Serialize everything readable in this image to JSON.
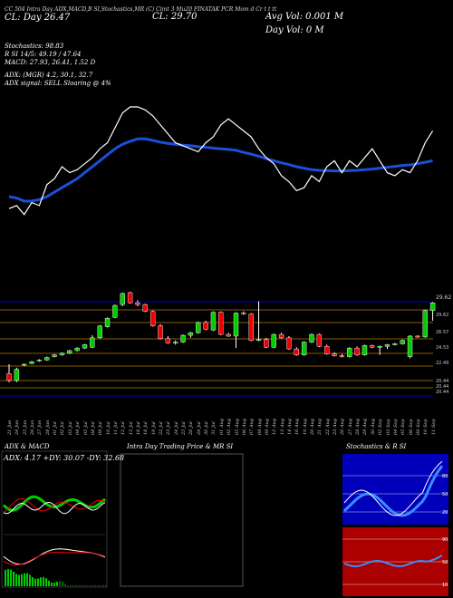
{
  "header": {
    "top_line": "CC 504 Intra Day ADX,MACD,B     SI,Stochastics,MR     (C) Cimt 3 Mu20     FINATAK PCR Mom d Cr t t tt",
    "lbl_left": "CL: Day",
    "val_left": "26.47",
    "lbl_cl": "CL: 29.70",
    "avg_vol": "Avg Vol: 0.001 M",
    "day_vol": "Day Vol: 0   M",
    "stoch": "Stochastics: 98.83",
    "rsi": "R                SI 14/5: 49.19 / 47.64",
    "macd": "MACD: 27.93, 26.41, 1.52  D",
    "adx": "ADX:                   (MGR) 4.2, 30.1, 32.7",
    "adx_signal": "ADX  signal: SELL  Sloaring @ 4%"
  },
  "panels": {
    "adx_title": "ADX  & MACD",
    "intraday_title": "Intra  Day Trading Price  & MR                         SI",
    "stoch_title": "Stochastics & R                    SI",
    "adx_values": "ADX: 4.17  +DY: 30.07  -DY: 32.68"
  },
  "price_labels": [
    "29.62",
    "26.57",
    "24.53",
    "22.49",
    "20.44",
    "20.44",
    "20.44"
  ],
  "x_labels": [
    "21 Jun",
    "24 Jun",
    "25 Jun",
    "26 Jun",
    "27 Jun",
    "28 Jun",
    "01 Jul",
    "02 Jul",
    "03 Jul",
    "04 Jul",
    "05 Jul",
    "08 Jul",
    "09 Jul",
    "10 Jul",
    "11 Jul",
    "12 Jul",
    "15 Jul",
    "16 Jul",
    "18 Jul",
    "19 Jul",
    "22 Jul",
    "23 Jul",
    "24 Jul",
    "25 Jul",
    "26 Jul",
    "29 Jul",
    "30 Jul",
    "31 Jul",
    "01 Aug",
    "02 Aug",
    "05 Aug",
    "06 Aug",
    "07 Aug",
    "08 Aug",
    "09 Aug",
    "12 Aug",
    "13 Aug",
    "14 Aug",
    "16 Aug",
    "19 Aug",
    "20 Aug",
    "21 Aug",
    "22 Aug",
    "23 Aug",
    "26 Aug",
    "27 Aug",
    "28 Aug",
    "29 Aug",
    "30 Aug",
    "02 Sep",
    "03 Sep",
    "04 Sep",
    "05 Sep",
    "06 Sep",
    "09 Sep",
    "10 Sep",
    "11 Sep"
  ],
  "scale_labels": [
    "99",
    "72.5",
    "50",
    "27.5",
    "1"
  ],
  "stoch_scales": [
    "80",
    "50",
    "20"
  ],
  "rsi_scales": [
    "90",
    "50",
    "10"
  ],
  "colors": {
    "up": "#00cc00",
    "down": "#ee0000",
    "ma": "#1c4fd8",
    "grid": "#8b5a00",
    "blue_band": "#0000cc"
  },
  "chart_data": {
    "type": "candlestick",
    "title": "FINATAK",
    "ylim": [
      19,
      31
    ],
    "candles": [
      {
        "o": 21.4,
        "h": 22.5,
        "l": 20.4,
        "c": 20.6
      },
      {
        "o": 20.6,
        "h": 22.1,
        "l": 20.4,
        "c": 21.9
      },
      {
        "o": 22.4,
        "h": 22.6,
        "l": 22.3,
        "c": 22.5
      },
      {
        "o": 22.6,
        "h": 22.9,
        "l": 22.5,
        "c": 22.8
      },
      {
        "o": 22.9,
        "h": 23.1,
        "l": 22.8,
        "c": 23.0
      },
      {
        "o": 23.0,
        "h": 23.4,
        "l": 22.9,
        "c": 23.3
      },
      {
        "o": 23.4,
        "h": 23.7,
        "l": 23.3,
        "c": 23.6
      },
      {
        "o": 23.6,
        "h": 23.9,
        "l": 23.5,
        "c": 23.8
      },
      {
        "o": 23.8,
        "h": 24.2,
        "l": 23.7,
        "c": 24.1
      },
      {
        "o": 24.1,
        "h": 24.5,
        "l": 24.0,
        "c": 24.4
      },
      {
        "o": 24.4,
        "h": 24.9,
        "l": 24.3,
        "c": 24.8
      },
      {
        "o": 24.5,
        "h": 25.9,
        "l": 24.4,
        "c": 25.6
      },
      {
        "o": 25.6,
        "h": 27.1,
        "l": 25.5,
        "c": 27.0
      },
      {
        "o": 26.9,
        "h": 28.0,
        "l": 26.8,
        "c": 27.9
      },
      {
        "o": 28.0,
        "h": 29.5,
        "l": 27.9,
        "c": 29.4
      },
      {
        "o": 29.5,
        "h": 30.9,
        "l": 29.3,
        "c": 30.8
      },
      {
        "o": 30.9,
        "h": 31.0,
        "l": 29.6,
        "c": 29.7
      },
      {
        "o": 29.7,
        "h": 30.0,
        "l": 29.3,
        "c": 29.5
      },
      {
        "o": 29.5,
        "h": 29.6,
        "l": 28.6,
        "c": 28.7
      },
      {
        "o": 28.7,
        "h": 28.8,
        "l": 26.9,
        "c": 27.0
      },
      {
        "o": 27.0,
        "h": 27.2,
        "l": 25.4,
        "c": 25.5
      },
      {
        "o": 25.5,
        "h": 25.8,
        "l": 24.9,
        "c": 25.0
      },
      {
        "o": 25.0,
        "h": 25.3,
        "l": 24.8,
        "c": 25.1
      },
      {
        "o": 25.1,
        "h": 26.0,
        "l": 25.0,
        "c": 25.9
      },
      {
        "o": 25.9,
        "h": 26.3,
        "l": 25.6,
        "c": 26.2
      },
      {
        "o": 26.2,
        "h": 27.5,
        "l": 26.1,
        "c": 27.4
      },
      {
        "o": 27.4,
        "h": 27.6,
        "l": 26.5,
        "c": 26.6
      },
      {
        "o": 26.5,
        "h": 28.7,
        "l": 26.4,
        "c": 28.6
      },
      {
        "o": 28.6,
        "h": 28.7,
        "l": 25.9,
        "c": 26.0
      },
      {
        "o": 26.0,
        "h": 26.2,
        "l": 25.7,
        "c": 25.8
      },
      {
        "o": 25.8,
        "h": 28.6,
        "l": 24.4,
        "c": 28.5
      },
      {
        "o": 28.5,
        "h": 28.7,
        "l": 28.3,
        "c": 28.4
      },
      {
        "o": 28.4,
        "h": 28.5,
        "l": 25.2,
        "c": 25.3
      },
      {
        "o": 25.3,
        "h": 29.9,
        "l": 25.2,
        "c": 25.4
      },
      {
        "o": 25.4,
        "h": 25.6,
        "l": 24.4,
        "c": 24.5
      },
      {
        "o": 24.5,
        "h": 26.1,
        "l": 24.4,
        "c": 26.0
      },
      {
        "o": 26.0,
        "h": 26.2,
        "l": 25.5,
        "c": 25.6
      },
      {
        "o": 25.6,
        "h": 25.8,
        "l": 24.2,
        "c": 24.3
      },
      {
        "o": 24.3,
        "h": 24.5,
        "l": 23.5,
        "c": 23.6
      },
      {
        "o": 23.6,
        "h": 25.2,
        "l": 23.5,
        "c": 25.1
      },
      {
        "o": 25.1,
        "h": 26.1,
        "l": 25.0,
        "c": 26.0
      },
      {
        "o": 26.0,
        "h": 26.1,
        "l": 24.5,
        "c": 24.6
      },
      {
        "o": 24.6,
        "h": 24.8,
        "l": 23.6,
        "c": 23.7
      },
      {
        "o": 23.7,
        "h": 23.9,
        "l": 23.4,
        "c": 23.5
      },
      {
        "o": 23.5,
        "h": 23.7,
        "l": 23.3,
        "c": 23.4
      },
      {
        "o": 23.4,
        "h": 24.5,
        "l": 23.3,
        "c": 24.4
      },
      {
        "o": 24.4,
        "h": 24.6,
        "l": 23.5,
        "c": 23.6
      },
      {
        "o": 23.6,
        "h": 24.8,
        "l": 23.5,
        "c": 24.7
      },
      {
        "o": 24.7,
        "h": 24.8,
        "l": 24.4,
        "c": 24.5
      },
      {
        "o": 24.5,
        "h": 24.7,
        "l": 23.6,
        "c": 24.6
      },
      {
        "o": 24.6,
        "h": 24.9,
        "l": 24.3,
        "c": 24.8
      },
      {
        "o": 24.8,
        "h": 25.0,
        "l": 24.7,
        "c": 24.9
      },
      {
        "o": 24.9,
        "h": 25.4,
        "l": 24.8,
        "c": 25.3
      },
      {
        "o": 23.4,
        "h": 25.9,
        "l": 23.2,
        "c": 25.8
      },
      {
        "o": 25.8,
        "h": 25.9,
        "l": 25.6,
        "c": 25.7
      },
      {
        "o": 25.7,
        "h": 28.9,
        "l": 25.6,
        "c": 28.8
      },
      {
        "o": 28.8,
        "h": 29.8,
        "l": 27.6,
        "c": 29.7
      }
    ],
    "white_line": [
      46,
      47,
      44,
      48,
      47,
      54,
      56,
      60,
      58,
      59,
      61,
      63,
      66,
      68,
      73,
      78,
      80,
      80,
      79,
      77,
      74,
      71,
      68,
      67,
      66,
      65,
      68,
      70,
      74,
      76,
      74,
      72,
      70,
      66,
      63,
      61,
      57,
      55,
      52,
      53,
      57,
      55,
      60,
      62,
      58,
      62,
      60,
      63,
      66,
      62,
      58,
      57,
      59,
      58,
      62,
      68,
      72
    ],
    "blue_line": [
      50,
      49.5,
      48.5,
      48.5,
      49,
      50,
      51.5,
      53,
      54.5,
      56,
      58,
      60,
      62,
      64,
      66,
      67.5,
      68.5,
      69.3,
      69.3,
      68.8,
      68.2,
      67.8,
      67.5,
      67.2,
      67,
      66.7,
      66.5,
      66.2,
      66,
      65.8,
      65.5,
      64.8,
      64.2,
      63.5,
      62.7,
      62,
      61.3,
      60.7,
      60,
      59.5,
      59,
      58.8,
      58.7,
      58.6,
      58.6,
      58.7,
      58.8,
      59,
      59.2,
      59.5,
      59.8,
      60.1,
      60.4,
      60.6,
      61,
      61.5,
      62
    ]
  }
}
